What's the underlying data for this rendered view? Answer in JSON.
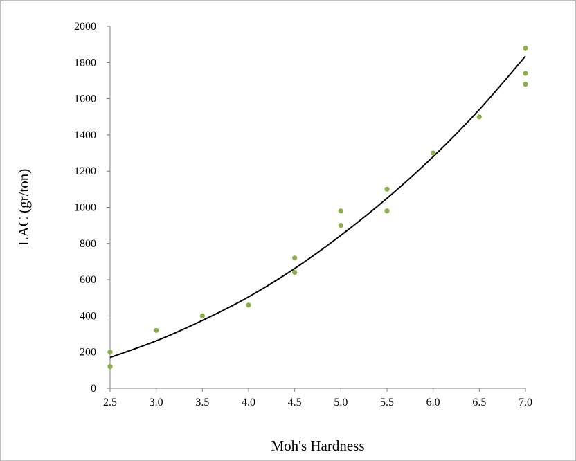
{
  "chart_data": {
    "type": "scatter",
    "title": "",
    "xlabel": "Moh's Hardness",
    "ylabel": "LAC (gr/ton)",
    "xlim": [
      2.5,
      7.0
    ],
    "ylim": [
      0,
      2000
    ],
    "x_ticks": [
      "2.5",
      "3.0",
      "3.5",
      "4.0",
      "4.5",
      "5.0",
      "5.5",
      "6.0",
      "6.5",
      "7.0"
    ],
    "y_ticks": [
      "0",
      "200",
      "400",
      "600",
      "800",
      "1000",
      "1200",
      "1400",
      "1600",
      "1800",
      "2000"
    ],
    "grid": false,
    "legend": "none",
    "marker_color": "#8db04a",
    "trendline_color": "#000000",
    "series": [
      {
        "points": [
          {
            "x": 2.5,
            "y": 200
          },
          {
            "x": 2.5,
            "y": 120
          },
          {
            "x": 3.0,
            "y": 320
          },
          {
            "x": 3.5,
            "y": 400
          },
          {
            "x": 4.0,
            "y": 460
          },
          {
            "x": 4.5,
            "y": 720
          },
          {
            "x": 4.5,
            "y": 640
          },
          {
            "x": 5.0,
            "y": 980
          },
          {
            "x": 5.0,
            "y": 900
          },
          {
            "x": 5.5,
            "y": 1100
          },
          {
            "x": 5.5,
            "y": 980
          },
          {
            "x": 6.0,
            "y": 1300
          },
          {
            "x": 6.5,
            "y": 1500
          },
          {
            "x": 7.0,
            "y": 1880
          },
          {
            "x": 7.0,
            "y": 1740
          },
          {
            "x": 7.0,
            "y": 1680
          }
        ]
      }
    ],
    "trendline": {
      "type": "polynomial-2",
      "points": [
        {
          "x": 2.5,
          "y": 170
        },
        {
          "x": 3.0,
          "y": 262
        },
        {
          "x": 3.5,
          "y": 375
        },
        {
          "x": 4.0,
          "y": 505
        },
        {
          "x": 4.5,
          "y": 662
        },
        {
          "x": 5.0,
          "y": 845
        },
        {
          "x": 5.5,
          "y": 1050
        },
        {
          "x": 6.0,
          "y": 1280
        },
        {
          "x": 6.5,
          "y": 1540
        },
        {
          "x": 7.0,
          "y": 1835
        }
      ]
    }
  }
}
